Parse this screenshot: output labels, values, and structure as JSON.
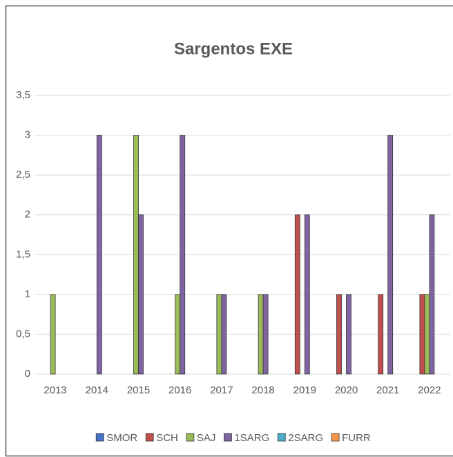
{
  "chart_data": {
    "type": "bar",
    "title": "Sargentos EXE",
    "categories": [
      "2013",
      "2014",
      "2015",
      "2016",
      "2017",
      "2018",
      "2019",
      "2020",
      "2021",
      "2022"
    ],
    "series": [
      {
        "name": "SMOR",
        "color": "#4472c4",
        "values": [
          0,
          0,
          0,
          0,
          0,
          0,
          0,
          0,
          0,
          0
        ]
      },
      {
        "name": "SCH",
        "color": "#c0504d",
        "values": [
          0,
          0,
          0,
          0,
          0,
          0,
          2,
          1,
          1,
          1
        ]
      },
      {
        "name": "SAJ",
        "color": "#9bbb59",
        "values": [
          1,
          0,
          3,
          1,
          1,
          1,
          0,
          0,
          0,
          1
        ]
      },
      {
        "name": "1SARG",
        "color": "#8064a2",
        "values": [
          0,
          3,
          2,
          3,
          1,
          1,
          2,
          1,
          3,
          2
        ]
      },
      {
        "name": "2SARG",
        "color": "#4bacc6",
        "values": [
          0,
          0,
          0,
          0,
          0,
          0,
          0,
          0,
          0,
          0
        ]
      },
      {
        "name": "FURR",
        "color": "#f79646",
        "values": [
          0,
          0,
          0,
          0,
          0,
          0,
          0,
          0,
          0,
          0
        ]
      }
    ],
    "ylim": [
      0,
      3.5
    ],
    "yticks": [
      0,
      {
        "value": 0.5,
        "label": "0,5"
      },
      1,
      {
        "value": 1.5,
        "label": "1,5"
      },
      2,
      {
        "value": 2.5,
        "label": "2,5"
      },
      3,
      {
        "value": 3.5,
        "label": "3,5"
      }
    ],
    "grid": true,
    "legend": "bottom"
  }
}
